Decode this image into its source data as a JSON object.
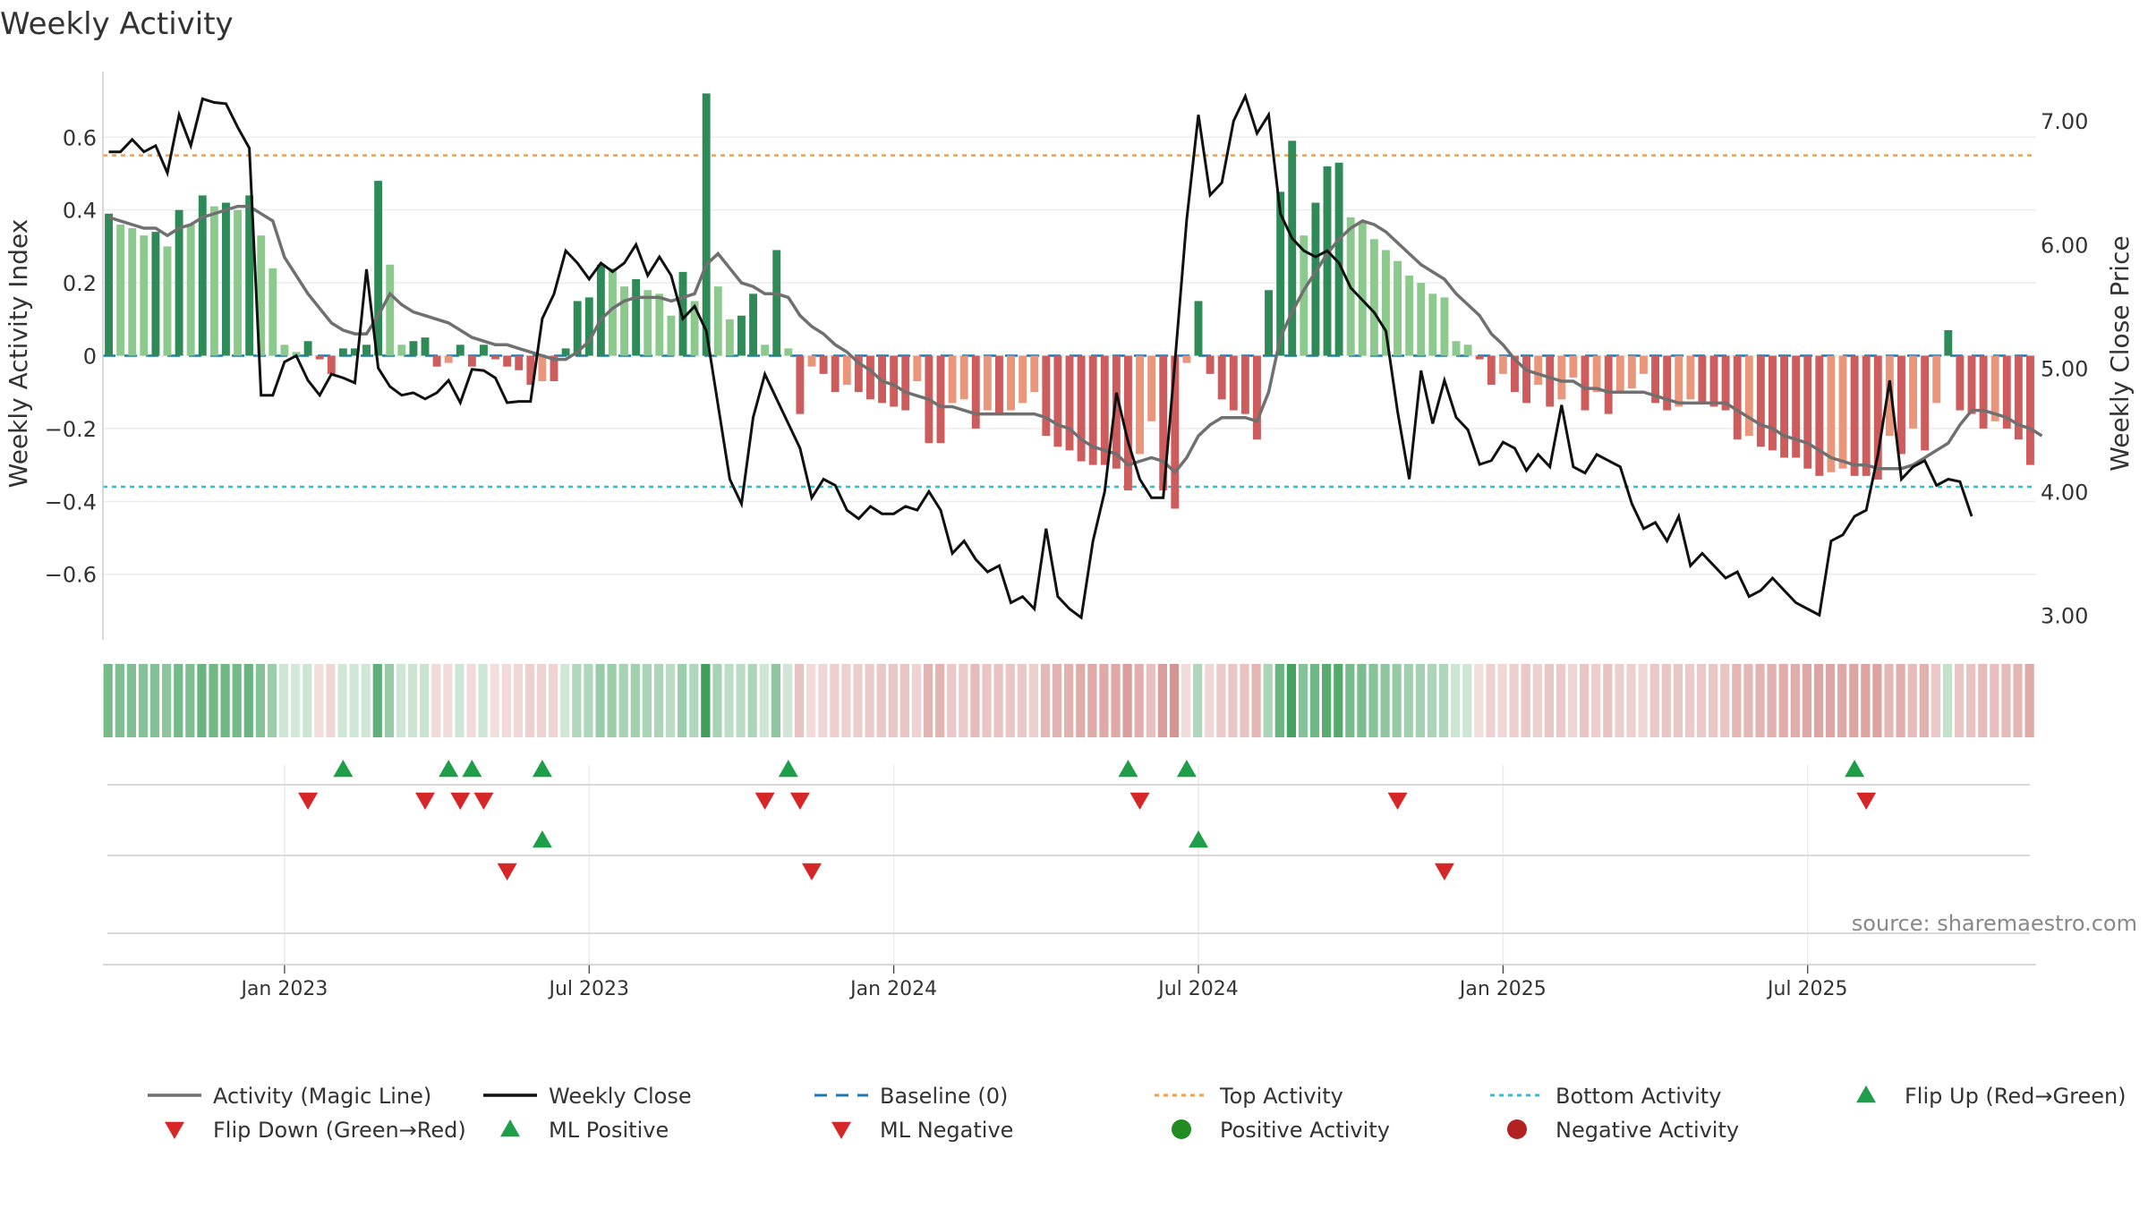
{
  "chart_data": {
    "type": "bar",
    "title": "Weekly Activity",
    "ylabel_left": "Weekly Activity Index",
    "ylabel_right": "Weekly Close Price",
    "source": "source: sharemaestro.com",
    "left_axis": {
      "ylim": [
        -0.78,
        0.78
      ],
      "ticks": [
        -0.6,
        -0.4,
        -0.2,
        0,
        0.2,
        0.4,
        0.6
      ],
      "tick_labels": [
        "−0.6",
        "−0.4",
        "−0.2",
        "0",
        "0.2",
        "0.4",
        "0.6"
      ]
    },
    "right_axis": {
      "ylim": [
        2.8,
        7.4
      ],
      "ticks": [
        3.0,
        4.0,
        5.0,
        6.0,
        7.0
      ],
      "tick_labels": [
        "3.00",
        "4.00",
        "5.00",
        "6.00",
        "7.00"
      ]
    },
    "x_tick_labels": [
      {
        "label": "Jan 2023",
        "week": 15
      },
      {
        "label": "Jul 2023",
        "week": 41
      },
      {
        "label": "Jan 2024",
        "week": 67
      },
      {
        "label": "Jul 2024",
        "week": 93
      },
      {
        "label": "Jan 2025",
        "week": 119
      },
      {
        "label": "Jul 2025",
        "week": 145
      }
    ],
    "reference_lines": {
      "baseline": 0,
      "top_activity": 0.55,
      "bottom_activity": -0.36
    },
    "colors": {
      "strong_positive": "#2e8b57",
      "weak_positive": "#8cc98c",
      "strong_negative": "#cd5c5c",
      "weak_negative": "#e9967a",
      "magic_line": "#707070",
      "close": "#111111",
      "baseline": "#1f77b4",
      "top": "#f0a050",
      "bottom": "#22c4dc",
      "flip_up": "#1f9e4a",
      "flip_down": "#d62728",
      "positive_dot": "#228b22",
      "negative_dot": "#b22222"
    },
    "activity": [
      0.39,
      0.36,
      0.35,
      0.33,
      0.34,
      0.3,
      0.4,
      0.36,
      0.44,
      0.41,
      0.42,
      0.4,
      0.44,
      0.33,
      0.24,
      0.03,
      0.01,
      0.04,
      -0.01,
      -0.05,
      0.02,
      0.02,
      0.03,
      0.48,
      0.25,
      0.03,
      0.04,
      0.05,
      -0.03,
      -0.02,
      0.03,
      -0.03,
      0.03,
      -0.01,
      -0.03,
      -0.04,
      -0.08,
      -0.07,
      -0.07,
      0.02,
      0.15,
      0.16,
      0.25,
      0.24,
      0.19,
      0.21,
      0.18,
      0.17,
      0.11,
      0.23,
      0.15,
      0.72,
      0.19,
      0.1,
      0.11,
      0.17,
      0.03,
      0.29,
      0.02,
      -0.16,
      -0.03,
      -0.05,
      -0.1,
      -0.08,
      -0.1,
      -0.12,
      -0.13,
      -0.14,
      -0.15,
      -0.07,
      -0.24,
      -0.24,
      -0.13,
      -0.12,
      -0.2,
      -0.15,
      -0.16,
      -0.15,
      -0.13,
      -0.1,
      -0.22,
      -0.25,
      -0.26,
      -0.29,
      -0.3,
      -0.3,
      -0.31,
      -0.37,
      -0.27,
      -0.18,
      -0.37,
      -0.42,
      -0.02,
      0.15,
      -0.05,
      -0.12,
      -0.15,
      -0.16,
      -0.23,
      0.18,
      0.45,
      0.59,
      0.33,
      0.42,
      0.52,
      0.53,
      0.38,
      0.37,
      0.32,
      0.29,
      0.26,
      0.22,
      0.2,
      0.17,
      0.16,
      0.04,
      0.03,
      -0.01,
      -0.08,
      -0.05,
      -0.1,
      -0.13,
      -0.08,
      -0.14,
      -0.12,
      -0.06,
      -0.15,
      -0.1,
      -0.16,
      -0.1,
      -0.09,
      -0.05,
      -0.13,
      -0.15,
      -0.14,
      -0.12,
      -0.13,
      -0.14,
      -0.15,
      -0.23,
      -0.22,
      -0.25,
      -0.26,
      -0.28,
      -0.28,
      -0.31,
      -0.33,
      -0.32,
      -0.31,
      -0.33,
      -0.33,
      -0.34,
      -0.22,
      -0.27,
      -0.2,
      -0.26,
      -0.13,
      0.07,
      -0.15,
      -0.16,
      -0.2,
      -0.18,
      -0.2,
      -0.23,
      -0.3
    ],
    "magic_line": [
      0.38,
      0.37,
      0.36,
      0.35,
      0.35,
      0.33,
      0.35,
      0.36,
      0.38,
      0.39,
      0.4,
      0.41,
      0.41,
      0.39,
      0.37,
      0.27,
      0.22,
      0.17,
      0.13,
      0.09,
      0.07,
      0.06,
      0.06,
      0.11,
      0.17,
      0.14,
      0.12,
      0.11,
      0.1,
      0.09,
      0.07,
      0.05,
      0.04,
      0.03,
      0.03,
      0.02,
      0.01,
      0.0,
      -0.01,
      -0.01,
      0.01,
      0.04,
      0.1,
      0.13,
      0.15,
      0.16,
      0.16,
      0.16,
      0.15,
      0.16,
      0.17,
      0.25,
      0.28,
      0.24,
      0.2,
      0.19,
      0.17,
      0.17,
      0.16,
      0.11,
      0.08,
      0.06,
      0.03,
      0.01,
      -0.02,
      -0.04,
      -0.07,
      -0.08,
      -0.1,
      -0.11,
      -0.12,
      -0.14,
      -0.14,
      -0.15,
      -0.16,
      -0.16,
      -0.16,
      -0.16,
      -0.16,
      -0.16,
      -0.17,
      -0.19,
      -0.2,
      -0.23,
      -0.25,
      -0.26,
      -0.27,
      -0.3,
      -0.29,
      -0.28,
      -0.29,
      -0.32,
      -0.28,
      -0.22,
      -0.19,
      -0.17,
      -0.17,
      -0.17,
      -0.18,
      -0.1,
      0.05,
      0.12,
      0.18,
      0.23,
      0.28,
      0.32,
      0.35,
      0.37,
      0.36,
      0.34,
      0.31,
      0.28,
      0.25,
      0.23,
      0.21,
      0.17,
      0.14,
      0.11,
      0.06,
      0.03,
      -0.01,
      -0.04,
      -0.05,
      -0.06,
      -0.07,
      -0.07,
      -0.09,
      -0.09,
      -0.1,
      -0.1,
      -0.1,
      -0.1,
      -0.11,
      -0.12,
      -0.13,
      -0.13,
      -0.13,
      -0.13,
      -0.13,
      -0.15,
      -0.17,
      -0.19,
      -0.2,
      -0.22,
      -0.23,
      -0.24,
      -0.26,
      -0.28,
      -0.29,
      -0.3,
      -0.3,
      -0.31,
      -0.31,
      -0.31,
      -0.3,
      -0.28,
      -0.26,
      -0.24,
      -0.19,
      -0.15,
      -0.15,
      -0.16,
      -0.17,
      -0.19,
      -0.2,
      -0.22
    ],
    "weekly_close": [
      6.75,
      6.75,
      6.85,
      6.75,
      6.8,
      6.58,
      7.05,
      6.8,
      7.18,
      7.15,
      7.14,
      6.95,
      6.78,
      4.78,
      4.78,
      5.05,
      5.1,
      4.9,
      4.78,
      4.95,
      4.92,
      4.88,
      5.8,
      5.0,
      4.85,
      4.78,
      4.8,
      4.75,
      4.8,
      4.9,
      4.72,
      4.99,
      4.98,
      4.92,
      4.72,
      4.73,
      4.73,
      5.4,
      5.6,
      5.95,
      5.85,
      5.72,
      5.85,
      5.78,
      5.85,
      6.0,
      5.75,
      5.9,
      5.75,
      5.4,
      5.5,
      5.3,
      4.7,
      4.1,
      3.9,
      4.6,
      4.95,
      4.75,
      4.55,
      4.35,
      3.95,
      4.1,
      4.05,
      3.85,
      3.78,
      3.88,
      3.82,
      3.82,
      3.88,
      3.85,
      4.0,
      3.85,
      3.5,
      3.6,
      3.45,
      3.35,
      3.4,
      3.1,
      3.15,
      3.05,
      3.7,
      3.15,
      3.05,
      2.98,
      3.6,
      4.0,
      4.8,
      4.4,
      4.1,
      3.95,
      3.95,
      5.05,
      6.2,
      7.05,
      6.4,
      6.5,
      7.0,
      7.2,
      6.9,
      7.05,
      6.25,
      6.05,
      5.95,
      5.9,
      5.95,
      5.85,
      5.65,
      5.55,
      5.45,
      5.3,
      4.65,
      4.1,
      4.98,
      4.55,
      4.9,
      4.6,
      4.5,
      4.22,
      4.25,
      4.4,
      4.35,
      4.17,
      4.3,
      4.2,
      4.7,
      4.2,
      4.15,
      4.3,
      4.25,
      4.2,
      3.9,
      3.7,
      3.75,
      3.6,
      3.8,
      3.4,
      3.5,
      3.4,
      3.3,
      3.35,
      3.15,
      3.2,
      3.3,
      3.2,
      3.1,
      3.05,
      3.0,
      3.6,
      3.65,
      3.8,
      3.85,
      4.3,
      4.9,
      4.1,
      4.2,
      4.25,
      4.05,
      4.1,
      4.08,
      3.8
    ],
    "flips_row1": {
      "up": [
        20,
        29,
        31,
        37,
        58,
        87,
        92,
        149
      ],
      "down": [
        17,
        27,
        30,
        32,
        56,
        59,
        88,
        110,
        150
      ]
    },
    "flips_row2": {
      "up": [
        37,
        93
      ],
      "down": [
        34,
        60,
        114
      ]
    },
    "legend": [
      {
        "label": "Activity (Magic Line)",
        "kind": "line",
        "color": "#707070"
      },
      {
        "label": "Weekly Close",
        "kind": "line",
        "color": "#111111"
      },
      {
        "label": "Baseline (0)",
        "kind": "dash",
        "color": "#1f77b4"
      },
      {
        "label": "Top Activity",
        "kind": "dot-line",
        "color": "#f0a050"
      },
      {
        "label": "Bottom Activity",
        "kind": "dot-line",
        "color": "#22c4dc"
      },
      {
        "label": "Flip Up (Red→Green)",
        "kind": "tri-up",
        "color": "#1f9e4a"
      },
      {
        "label": "Flip Down (Green→Red)",
        "kind": "tri-down",
        "color": "#d62728"
      },
      {
        "label": "ML Positive",
        "kind": "tri-up",
        "color": "#1f9e4a"
      },
      {
        "label": "ML Negative",
        "kind": "tri-down",
        "color": "#d62728"
      },
      {
        "label": "Positive Activity",
        "kind": "circle",
        "color": "#228b22"
      },
      {
        "label": "Negative Activity",
        "kind": "circle",
        "color": "#b22222"
      }
    ]
  }
}
